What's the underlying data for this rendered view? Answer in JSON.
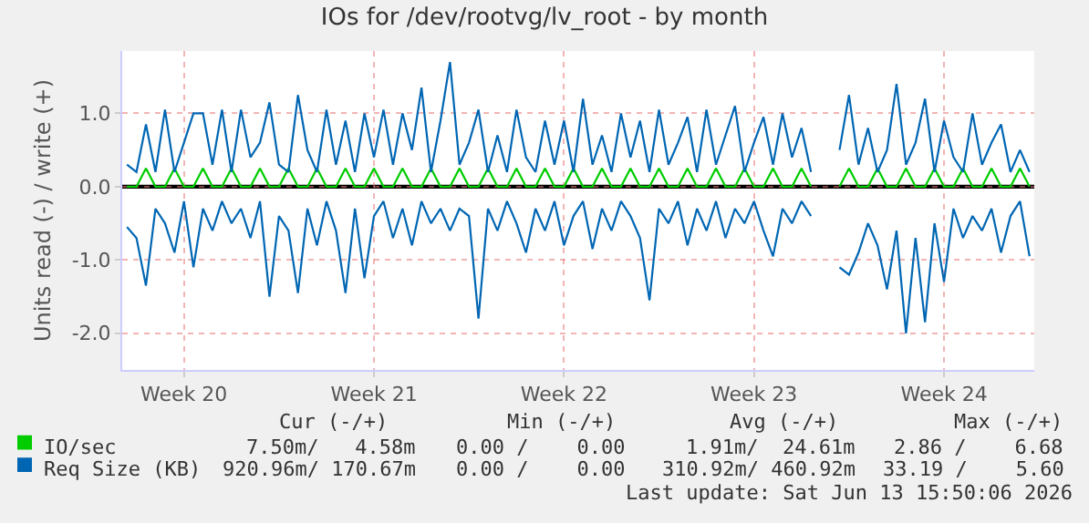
{
  "chart_data": {
    "type": "line",
    "title": "IOs for /dev/rootvg/lv_root - by month",
    "ylabel": "Units read (-) / write (+)",
    "categories": [
      null,
      null,
      null,
      null,
      null,
      null,
      "Week 20",
      null,
      null,
      null,
      null,
      null,
      null,
      null,
      null,
      null,
      null,
      null,
      null,
      null,
      null,
      null,
      null,
      null,
      null,
      null,
      "Week 21",
      null,
      null,
      null,
      null,
      null,
      null,
      null,
      null,
      null,
      null,
      null,
      null,
      null,
      null,
      null,
      null,
      null,
      null,
      null,
      "Week 22",
      null,
      null,
      null,
      null,
      null,
      null,
      null,
      null,
      null,
      null,
      null,
      null,
      null,
      null,
      null,
      null,
      null,
      null,
      null,
      "Week 23",
      null,
      null,
      null,
      null,
      null,
      null,
      null,
      null,
      null,
      null,
      null,
      null,
      null,
      null,
      null,
      null,
      null,
      null,
      null,
      "Week 24",
      null,
      null,
      null,
      null,
      null,
      null,
      null,
      null,
      null
    ],
    "series": [
      {
        "name": "IO/sec",
        "color": "#00cc00",
        "values": [
          0,
          0,
          0.25,
          0,
          0,
          0.25,
          0,
          0,
          0.25,
          0,
          0,
          0.25,
          0,
          0,
          0.25,
          0,
          0,
          0.25,
          0,
          0,
          0.25,
          0,
          0,
          0.25,
          0,
          0,
          0.25,
          0,
          0,
          0.25,
          0,
          0,
          0.25,
          0,
          0,
          0.25,
          0,
          0,
          0.25,
          0,
          0,
          0.25,
          0,
          0,
          0.25,
          0,
          0,
          0.25,
          0,
          0,
          0.25,
          0,
          0,
          0.25,
          0,
          0,
          0.25,
          0,
          0,
          0.25,
          0,
          0,
          0.25,
          0,
          0,
          0.25,
          0,
          0,
          0.25,
          0,
          0,
          0.25,
          0,
          null,
          null,
          0,
          0.25,
          0,
          0,
          0.25,
          0,
          0,
          0.25,
          0,
          0,
          0.25,
          0,
          0,
          0.25,
          0,
          0,
          0.25,
          0,
          0,
          0.25,
          0
        ]
      },
      {
        "name": "Req Size (KB)",
        "color": "#0066b3",
        "values": [
          0.3,
          0.2,
          0.85,
          0.2,
          1.05,
          0.2,
          0.6,
          1.0,
          1.0,
          0.3,
          1.05,
          0.2,
          1.05,
          0.4,
          0.6,
          1.15,
          0.3,
          0.2,
          1.25,
          0.5,
          0.2,
          1.05,
          0.3,
          0.9,
          0.2,
          1.0,
          0.4,
          1.05,
          0.3,
          1.0,
          0.5,
          1.35,
          0.2,
          0.9,
          1.7,
          0.3,
          0.6,
          1.05,
          0.2,
          0.7,
          0.2,
          1.05,
          0.4,
          0.2,
          0.9,
          0.3,
          0.9,
          0.2,
          1.2,
          0.3,
          0.7,
          0.2,
          1.0,
          0.4,
          0.9,
          0.2,
          1.05,
          0.3,
          0.6,
          0.95,
          0.2,
          1.05,
          0.3,
          0.7,
          1.1,
          0.2,
          0.6,
          0.95,
          0.3,
          1.0,
          0.4,
          0.8,
          0.2,
          null,
          null,
          0.5,
          1.25,
          0.3,
          0.8,
          0.2,
          0.5,
          1.4,
          0.3,
          0.6,
          1.2,
          0.2,
          0.9,
          0.4,
          0.2,
          1.0,
          0.3,
          0.6,
          0.85,
          0.2,
          0.5,
          0.2
        ]
      },
      {
        "color": "#0066b3",
        "values": [
          -0.55,
          -0.7,
          -1.35,
          -0.3,
          -0.5,
          -0.9,
          -0.2,
          -1.1,
          -0.3,
          -0.6,
          -0.2,
          -0.5,
          -0.3,
          -0.7,
          -0.2,
          -1.5,
          -0.4,
          -0.6,
          -1.45,
          -0.3,
          -0.8,
          -0.2,
          -0.6,
          -1.45,
          -0.3,
          -1.25,
          -0.4,
          -0.2,
          -0.7,
          -0.3,
          -0.8,
          -0.2,
          -0.5,
          -0.3,
          -0.6,
          -0.3,
          -0.4,
          -1.8,
          -0.3,
          -0.6,
          -0.2,
          -0.5,
          -0.9,
          -0.3,
          -0.6,
          -0.2,
          -0.8,
          -0.4,
          -0.2,
          -0.85,
          -0.3,
          -0.6,
          -0.2,
          -0.4,
          -0.7,
          -1.55,
          -0.3,
          -0.5,
          -0.2,
          -0.8,
          -0.3,
          -0.6,
          -0.2,
          -0.7,
          -0.3,
          -0.5,
          -0.2,
          -0.6,
          -0.95,
          -0.3,
          -0.5,
          -0.2,
          -0.4,
          null,
          null,
          -1.1,
          -1.2,
          -0.9,
          -0.5,
          -0.8,
          -1.4,
          -0.6,
          -2.0,
          -0.7,
          -1.85,
          -0.5,
          -1.3,
          -0.3,
          -0.7,
          -0.4,
          -0.6,
          -0.3,
          -0.9,
          -0.4,
          -0.2,
          -0.95
        ]
      }
    ],
    "ylim": [
      -2.5,
      1.85
    ],
    "yticks": [
      {
        "value": -2,
        "label": "-2.0"
      },
      {
        "value": -1,
        "label": "-1.0"
      },
      {
        "value": 0,
        "label": "0.0"
      },
      {
        "value": 1,
        "label": "1.0"
      }
    ],
    "ref_lines": [
      {
        "axis": "y",
        "value": 0,
        "color": "#000000"
      }
    ],
    "grid": true,
    "legend": "bottom left",
    "marker": "none",
    "line_style": "solid",
    "annotations": [
      "Cur (-/+)",
      "Min (-/+)",
      "Avg (-/+)",
      "Max (-/+)",
      "7.50m/   4.58m",
      "0.00 /    0.00",
      "1.91m/  24.61m",
      "2.86 /    6.68",
      "920.96m/ 170.67m",
      "0.00 /    0.00",
      "310.92m/ 460.92m",
      "33.19 /    5.60",
      "Last update: Sat Jun 13 15:50:06 2026"
    ]
  }
}
